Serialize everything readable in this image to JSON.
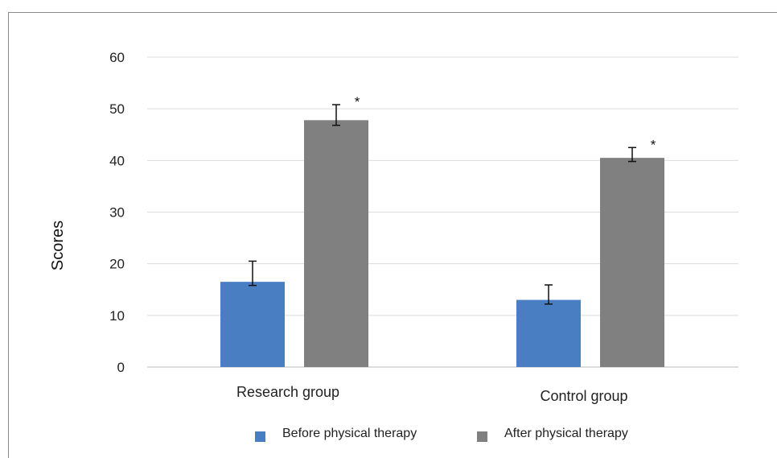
{
  "chart_data": {
    "type": "bar",
    "title": "",
    "xlabel": "",
    "ylabel": "Scores",
    "ylim": [
      0,
      60
    ],
    "yticks": [
      0,
      10,
      20,
      30,
      40,
      50,
      60
    ],
    "ytick_labels": [
      "0",
      "10",
      "20",
      "30",
      "40",
      "50",
      "60"
    ],
    "grid": true,
    "legend_position": "bottom",
    "categories": [
      "Research group",
      "Control group"
    ],
    "series": [
      {
        "name": "Before physical therapy",
        "color": "#4a7ec2",
        "values": [
          16.5,
          13.0
        ],
        "error_low": [
          15.8,
          12.2
        ],
        "error_high": [
          20.5,
          15.9
        ]
      },
      {
        "name": "After physical therapy",
        "color": "#808080",
        "values": [
          47.8,
          40.5
        ],
        "error_low": [
          46.8,
          39.8
        ],
        "error_high": [
          50.8,
          42.5
        ]
      }
    ],
    "annotations": [
      "*",
      "*"
    ]
  }
}
